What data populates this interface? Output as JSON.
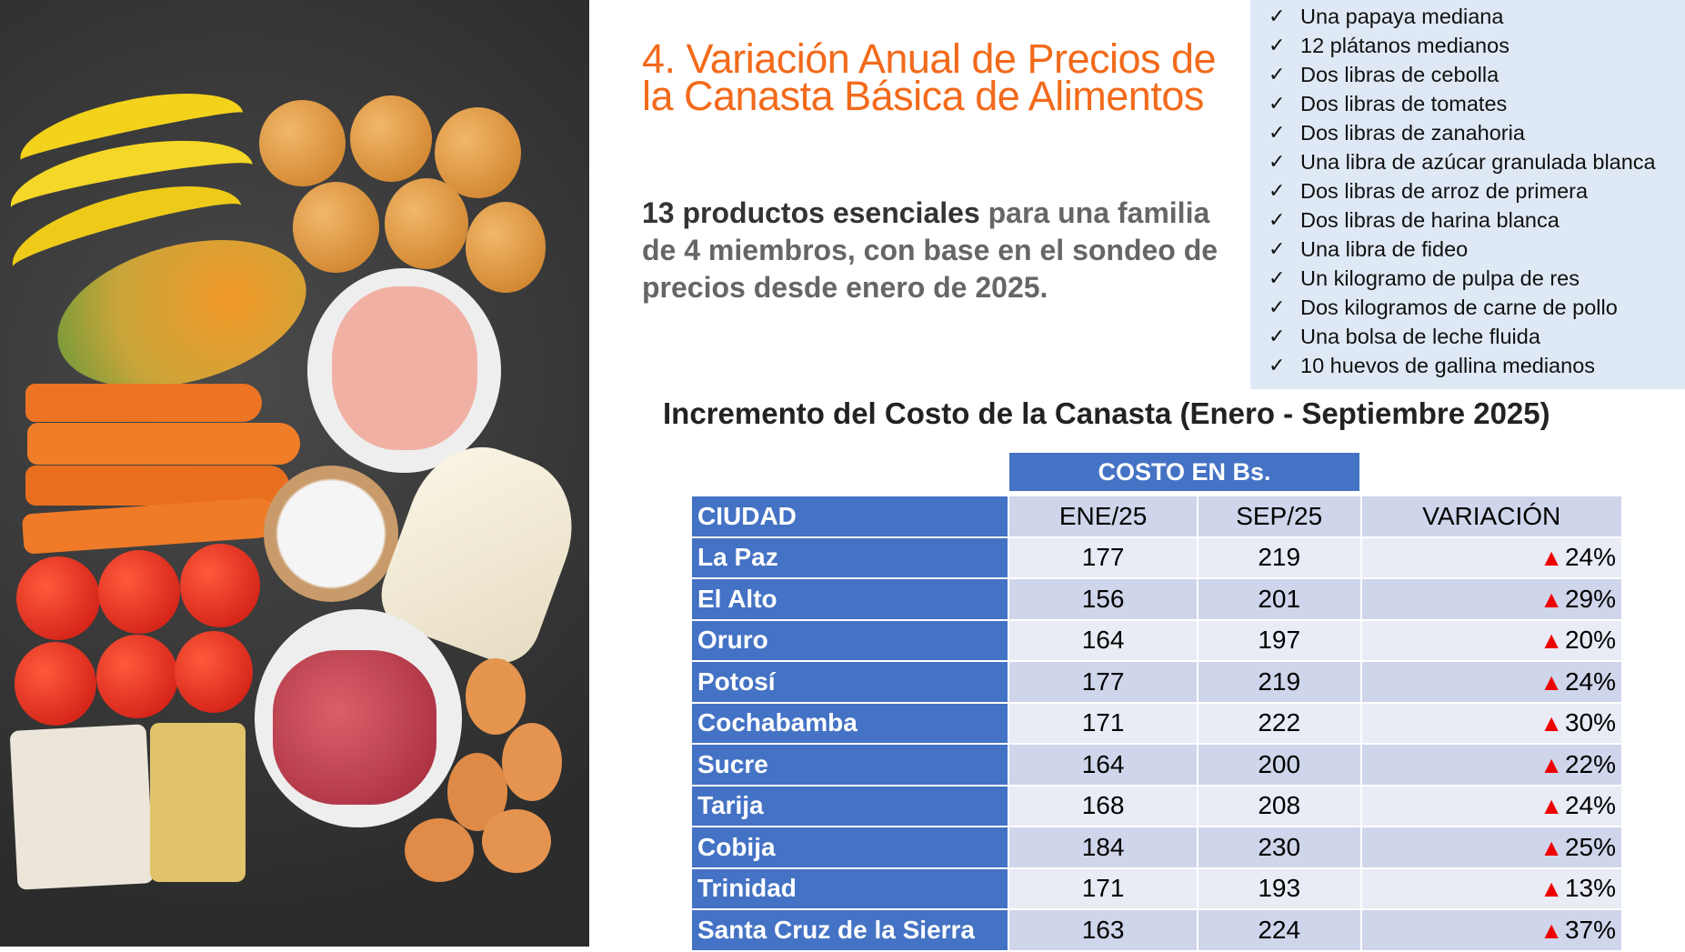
{
  "title": "4. Variación Anual de Precios de la Canasta Básica de Alimentos",
  "subtitle": {
    "strong": "13 productos esenciales",
    "rest": " para una familia de 4 miembros, con base en el sondeo de precios desde enero de 2025."
  },
  "products": [
    "Una papaya mediana",
    "12 plátanos medianos",
    "Dos libras de cebolla",
    "Dos libras de tomates",
    "Dos libras de zanahoria",
    "Una libra de azúcar granulada blanca",
    "Dos libras de arroz de primera",
    "Dos libras de harina blanca",
    "Una libra de fideo",
    "Un kilogramo de pulpa de res",
    "Dos kilogramos de carne de pollo",
    "Una bolsa de leche fluida",
    "10 huevos de gallina medianos"
  ],
  "check_symbol": "✓",
  "table_heading": "Incremento del Costo de la Canasta (Enero - Septiembre 2025)",
  "table": {
    "group_header": "COSTO EN Bs.",
    "columns": [
      "CIUDAD",
      "ENE/25",
      "SEP/25",
      "VARIACIÓN"
    ],
    "up_symbol": "▲",
    "rows": [
      [
        "La Paz",
        "177",
        "219",
        "24%"
      ],
      [
        "El Alto",
        "156",
        "201",
        "29%"
      ],
      [
        "Oruro",
        "164",
        "197",
        "20%"
      ],
      [
        "Potosí",
        "177",
        "219",
        "24%"
      ],
      [
        "Cochabamba",
        "171",
        "222",
        "30%"
      ],
      [
        "Sucre",
        "164",
        "200",
        "22%"
      ],
      [
        "Tarija",
        "168",
        "208",
        "24%"
      ],
      [
        "Cobija",
        "184",
        "230",
        "25%"
      ],
      [
        "Trinidad",
        "171",
        "193",
        "13%"
      ],
      [
        "Santa Cruz de la Sierra",
        "163",
        "224",
        "37%"
      ]
    ]
  },
  "colors": {
    "accent": "#f26a1b",
    "table_blue": "#4472c4",
    "list_bg": "#dfe9f5",
    "up": "#e00000"
  }
}
